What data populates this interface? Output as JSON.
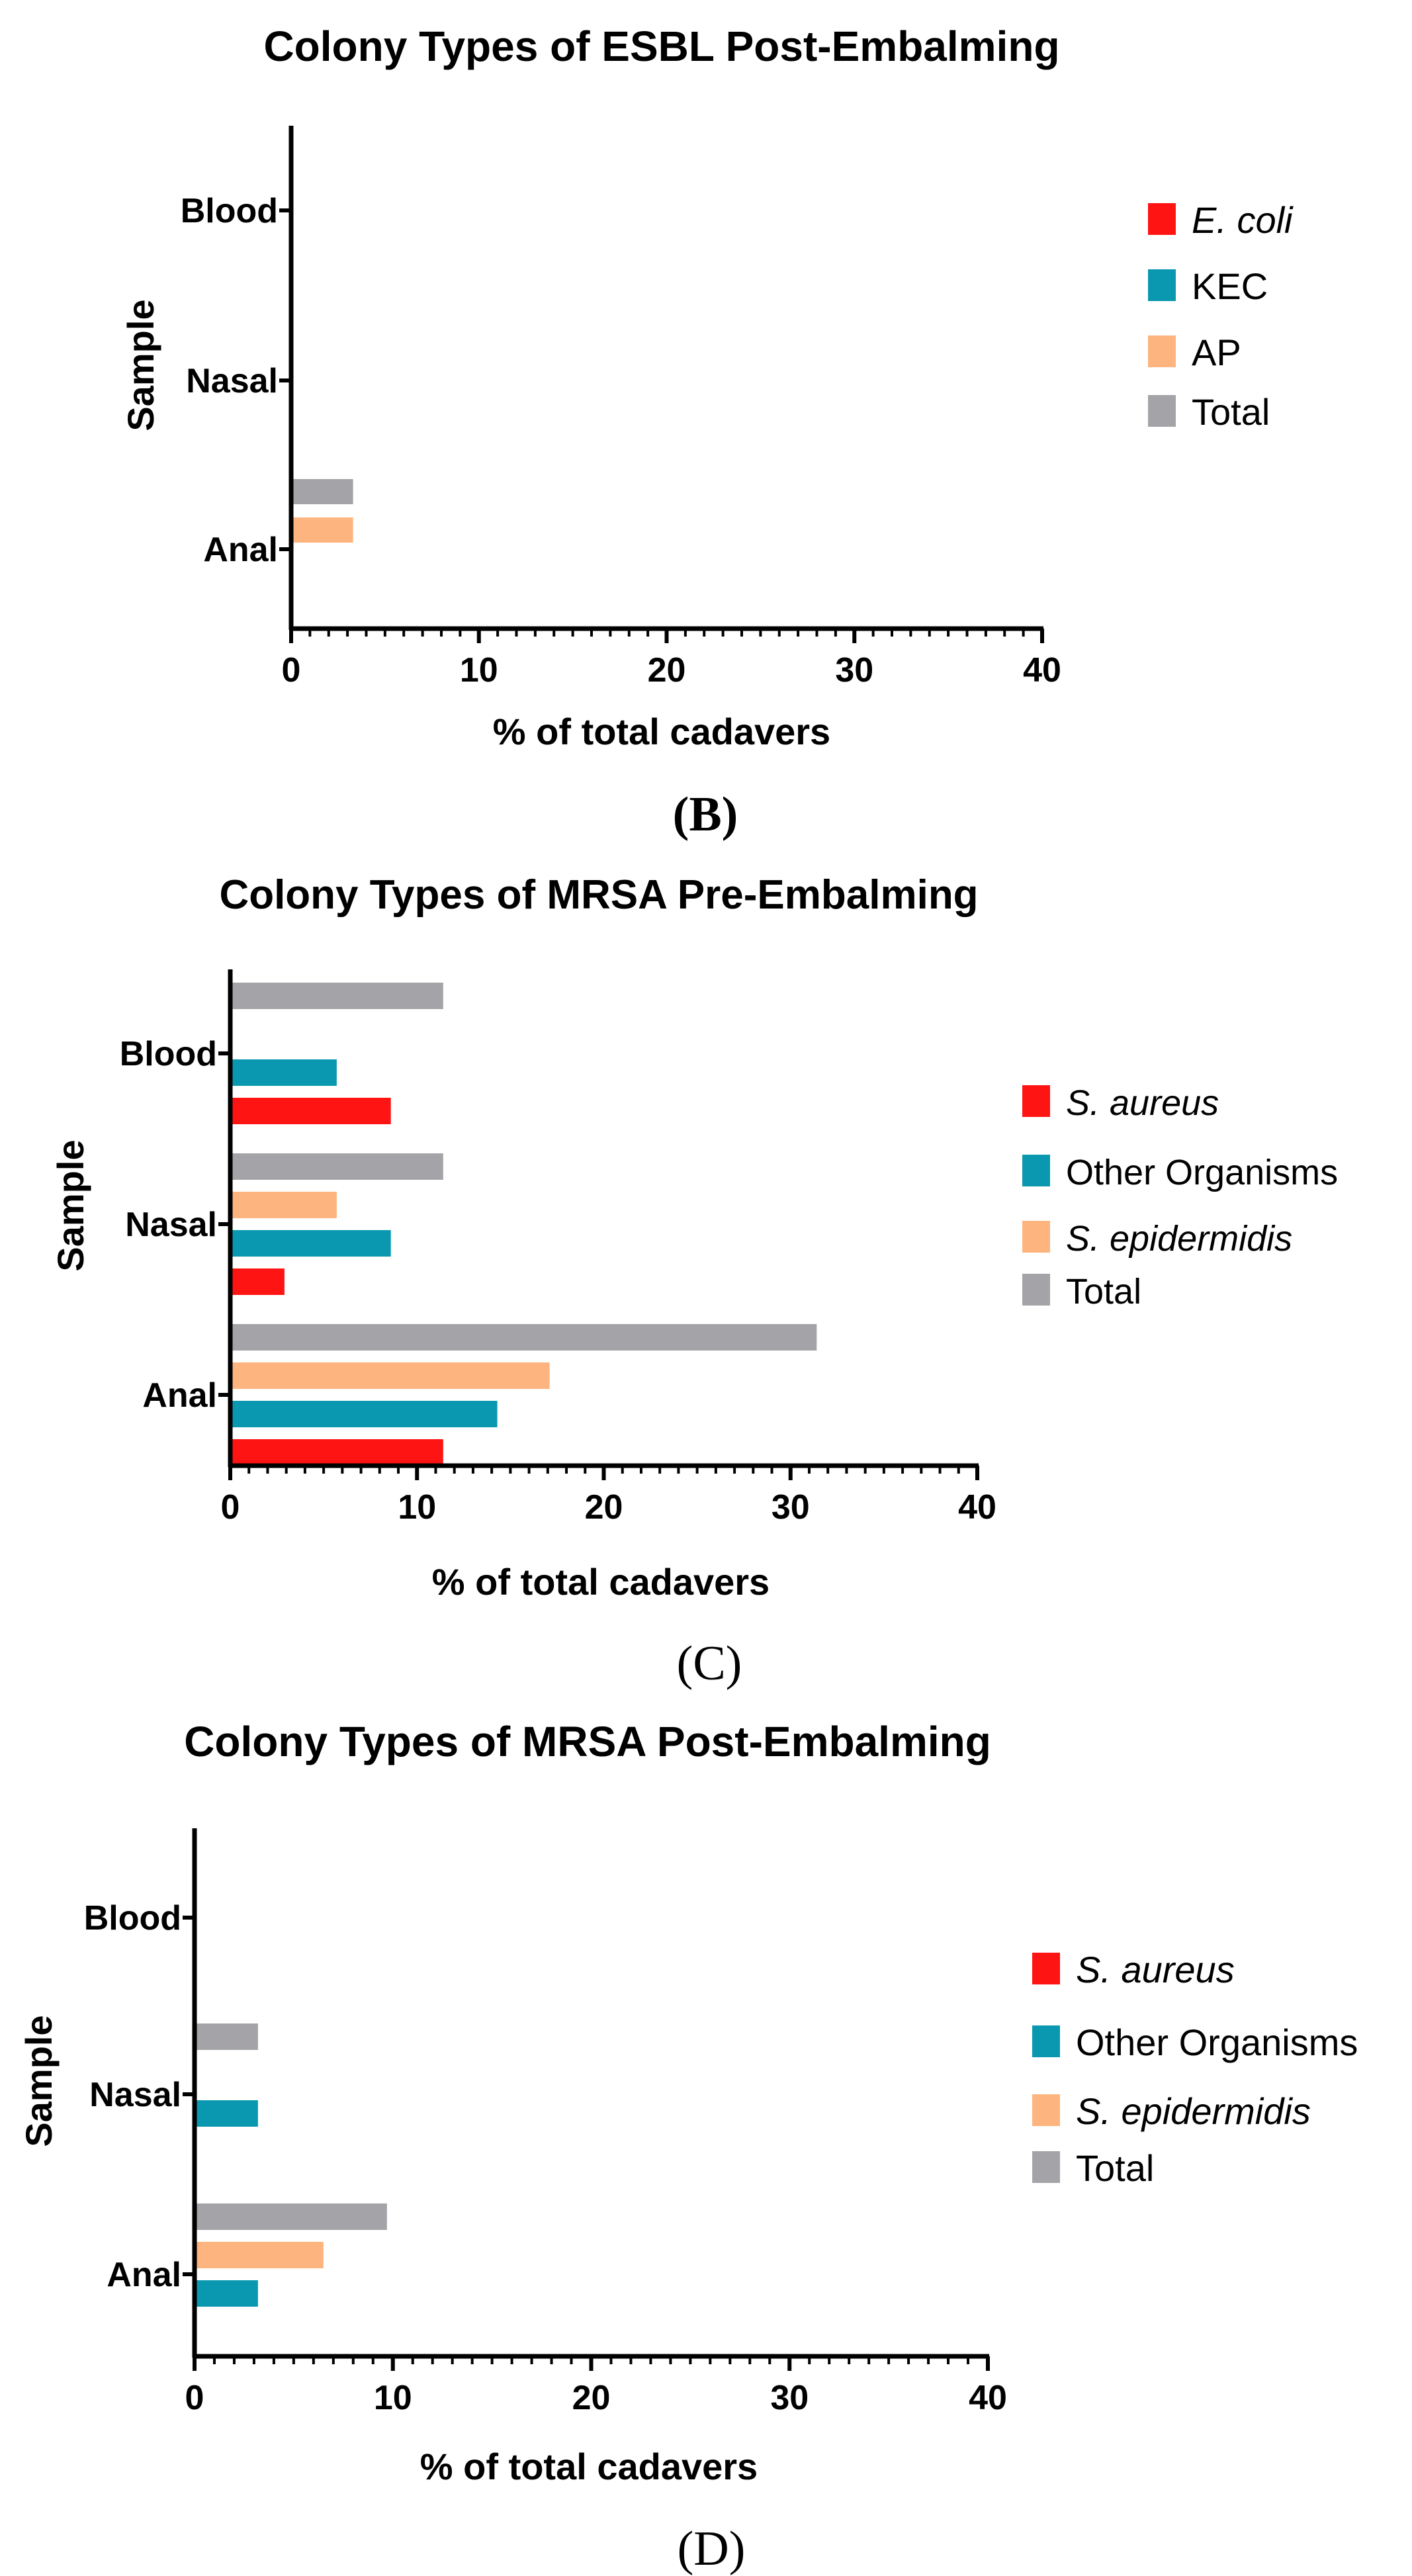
{
  "figure": {
    "panels": [
      {
        "label": "(B)",
        "label_letter": "B"
      },
      {
        "label": "(C)",
        "label_letter": "C"
      },
      {
        "label": "(D)",
        "label_letter": "D"
      }
    ]
  },
  "colors": {
    "red": "#ff1414",
    "teal": "#0a98b0",
    "orange": "#fdb47e",
    "gray": "#a4a4a8",
    "axis": "#000000"
  },
  "chart_data": [
    {
      "type": "bar",
      "orientation": "horizontal",
      "title": "Colony Types of ESBL Post-Embalming",
      "xlabel": "% of total cadavers",
      "ylabel": "Sample",
      "categories": [
        "Blood",
        "Nasal",
        "Anal"
      ],
      "xlim": [
        0,
        40
      ],
      "xticks": [
        0,
        10,
        20,
        30,
        40
      ],
      "legend": "right",
      "series": [
        {
          "name": "E. coli",
          "italic": true,
          "color": "red",
          "values": [
            0,
            0,
            0
          ]
        },
        {
          "name": "KEC",
          "italic": false,
          "color": "teal",
          "values": [
            0,
            0,
            0
          ]
        },
        {
          "name": "AP",
          "italic": false,
          "color": "orange",
          "values": [
            0,
            0,
            3.3
          ]
        },
        {
          "name": "Total",
          "italic": false,
          "color": "gray",
          "values": [
            0,
            0,
            3.3
          ]
        }
      ]
    },
    {
      "type": "bar",
      "orientation": "horizontal",
      "title": "Colony Types of MRSA Pre-Embalming",
      "xlabel": "% of total cadavers",
      "ylabel": "Sample",
      "categories": [
        "Blood",
        "Nasal",
        "Anal"
      ],
      "xlim": [
        0,
        40
      ],
      "xticks": [
        0,
        10,
        20,
        30,
        40
      ],
      "legend": "right",
      "series": [
        {
          "name": "S. aureus",
          "italic": true,
          "color": "red",
          "values": [
            8.6,
            2.9,
            11.4
          ]
        },
        {
          "name": "Other Organisms",
          "italic": false,
          "color": "teal",
          "values": [
            5.7,
            8.6,
            14.3
          ]
        },
        {
          "name": "S. epidermidis",
          "italic": true,
          "color": "orange",
          "values": [
            0,
            5.7,
            17.1
          ]
        },
        {
          "name": "Total",
          "italic": false,
          "color": "gray",
          "values": [
            11.4,
            11.4,
            31.4
          ]
        }
      ]
    },
    {
      "type": "bar",
      "orientation": "horizontal",
      "title": "Colony Types of MRSA Post-Embalming",
      "xlabel": "% of total cadavers",
      "ylabel": "Sample",
      "categories": [
        "Blood",
        "Nasal",
        "Anal"
      ],
      "xlim": [
        0,
        40
      ],
      "xticks": [
        0,
        10,
        20,
        30,
        40
      ],
      "legend": "right",
      "series": [
        {
          "name": "S. aureus",
          "italic": true,
          "color": "red",
          "values": [
            0,
            0,
            0
          ]
        },
        {
          "name": "Other Organisms",
          "italic": false,
          "color": "teal",
          "values": [
            0,
            3.2,
            3.2
          ]
        },
        {
          "name": "S. epidermidis",
          "italic": true,
          "color": "orange",
          "values": [
            0,
            0,
            6.5
          ]
        },
        {
          "name": "Total",
          "italic": false,
          "color": "gray",
          "values": [
            0,
            3.2,
            9.7
          ]
        }
      ]
    }
  ]
}
